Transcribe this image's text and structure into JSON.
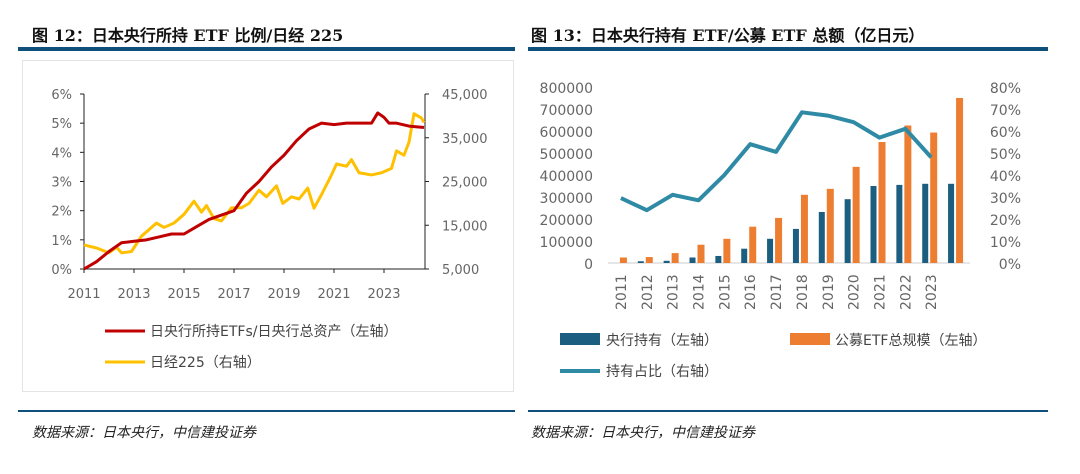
{
  "left": {
    "title": "图 12：日本央行所持 ETF 比例/日经 225",
    "source": "数据来源：日本央行，中信建投证券"
  },
  "right": {
    "title": "图 13：日本央行持有 ETF/公募 ETF 总额（亿日元）",
    "source": "数据来源：日本央行，中信建投证券"
  },
  "chart_data": [
    {
      "type": "line",
      "title": "图 12：日本央行所持 ETF 比例/日经 225",
      "x_ticks": [
        "2011",
        "2013",
        "2015",
        "2017",
        "2019",
        "2021",
        "2023"
      ],
      "y_left": {
        "ticks": [
          "0%",
          "1%",
          "2%",
          "3%",
          "4%",
          "5%",
          "6%"
        ],
        "range": [
          0,
          6
        ]
      },
      "y_right": {
        "ticks": [
          "5,000",
          "15,000",
          "25,000",
          "35,000",
          "45,000"
        ],
        "range": [
          5000,
          45000
        ]
      },
      "legend_position": "bottom",
      "series": [
        {
          "name": "日央行所持ETFs/日央行总资产（左轴）",
          "axis": "left",
          "color": "#c00000",
          "x": [
            2011,
            2011.5,
            2012,
            2012.5,
            2013,
            2013.5,
            2014,
            2014.5,
            2015,
            2015.5,
            2016,
            2016.5,
            2017,
            2017.5,
            2018,
            2018.5,
            2019,
            2019.5,
            2020,
            2020.5,
            2021,
            2021.5,
            2022,
            2022.5,
            2022.75,
            2023,
            2023.2,
            2023.5,
            2024,
            2024.6
          ],
          "y": [
            0,
            0.25,
            0.6,
            0.9,
            0.95,
            1.0,
            1.1,
            1.2,
            1.2,
            1.45,
            1.7,
            1.85,
            2.0,
            2.6,
            3.0,
            3.5,
            3.9,
            4.4,
            4.8,
            5.0,
            4.95,
            5.0,
            5.0,
            5.0,
            5.35,
            5.2,
            5.0,
            5.0,
            4.9,
            4.85
          ]
        },
        {
          "name": "日经225（右轴）",
          "axis": "right",
          "color": "#ffc000",
          "x": [
            2011,
            2011.5,
            2012,
            2012.3,
            2012.5,
            2012.9,
            2013.3,
            2013.5,
            2013.9,
            2014.2,
            2014.6,
            2015,
            2015.4,
            2015.7,
            2015.9,
            2016.2,
            2016.5,
            2016.9,
            2017.3,
            2017.6,
            2018,
            2018.3,
            2018.7,
            2018.95,
            2019.3,
            2019.6,
            2019.95,
            2020.2,
            2020.5,
            2020.9,
            2021.1,
            2021.5,
            2021.7,
            2022,
            2022.5,
            2022.9,
            2023.3,
            2023.5,
            2023.8,
            2024,
            2024.2,
            2024.5,
            2024.6
          ],
          "y": [
            10500,
            9800,
            8700,
            10000,
            8700,
            9000,
            12500,
            13500,
            15500,
            14500,
            15500,
            17500,
            20500,
            18000,
            19500,
            16500,
            16000,
            19000,
            19000,
            20000,
            23000,
            21500,
            24000,
            20000,
            21500,
            21000,
            23500,
            18900,
            22000,
            26500,
            29000,
            28500,
            30000,
            27000,
            26500,
            27000,
            28000,
            32000,
            31000,
            34000,
            40500,
            39500,
            38500
          ]
        }
      ]
    },
    {
      "type": "bar",
      "title": "图 13：日本央行持有 ETF/公募 ETF 总额（亿日元）",
      "categories": [
        "2011",
        "2012",
        "2013",
        "2014",
        "2015",
        "2016",
        "2017",
        "2018",
        "2019",
        "2020",
        "2021",
        "2022",
        "2023",
        ""
      ],
      "y_left": {
        "ticks": [
          "0",
          "100000",
          "200000",
          "300000",
          "400000",
          "500000",
          "600000",
          "700000",
          "800000"
        ],
        "range": [
          0,
          800000
        ]
      },
      "y_right": {
        "ticks": [
          "0%",
          "10%",
          "20%",
          "30%",
          "40%",
          "50%",
          "60%",
          "70%",
          "80%"
        ],
        "range": [
          0,
          80
        ]
      },
      "legend_position": "bottom",
      "series": [
        {
          "name": "央行持有（左轴）",
          "type": "bar",
          "color": "#1b5e80",
          "values": [
            0,
            8000,
            10000,
            25000,
            32000,
            65000,
            110000,
            155000,
            232000,
            290000,
            350000,
            355000,
            360000,
            360000
          ]
        },
        {
          "name": "公募ETF总规模（左轴）",
          "type": "bar",
          "color": "#ed7d31",
          "values": [
            25000,
            27000,
            45000,
            83000,
            110000,
            165000,
            205000,
            310000,
            337000,
            437000,
            550000,
            625000,
            593000,
            750000
          ]
        },
        {
          "name": "持有占比（右轴）",
          "type": "line",
          "color": "#2e8aa5",
          "values": [
            29.5,
            24,
            31,
            28.5,
            40,
            54,
            50.5,
            68.5,
            67,
            64,
            57,
            61,
            48,
            null
          ]
        }
      ]
    }
  ]
}
